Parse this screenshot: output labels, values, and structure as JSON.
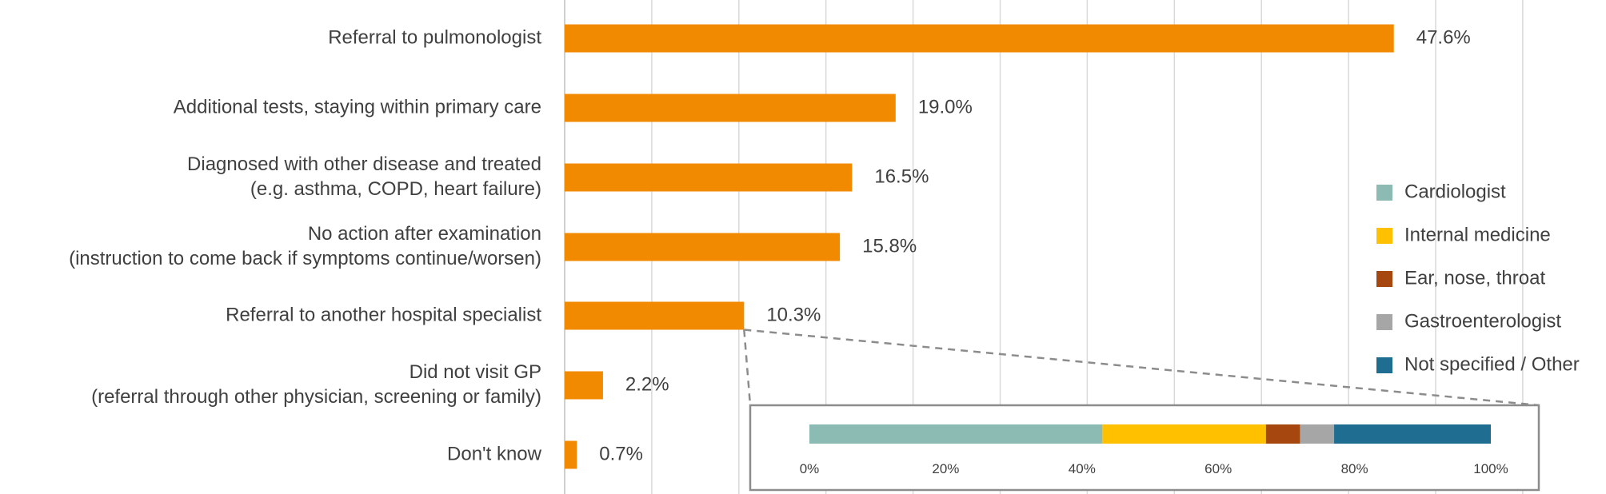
{
  "chart_data": [
    {
      "type": "bar",
      "orientation": "horizontal",
      "categories": [
        [
          "Referral to pulmonologist"
        ],
        [
          "Additional tests, staying within primary care"
        ],
        [
          "Diagnosed with other disease and treated",
          "(e.g. asthma, COPD, heart failure)"
        ],
        [
          "No action after examination",
          "(instruction to come back if symptoms continue/worsen)"
        ],
        [
          "Referral to another hospital specialist"
        ],
        [
          "Did not visit GP",
          "(referral through other physician, screening or family)"
        ],
        [
          "Don't know"
        ]
      ],
      "values": [
        47.6,
        19.0,
        16.5,
        15.8,
        10.3,
        2.2,
        0.7
      ],
      "value_labels": [
        "47.6%",
        "19.0%",
        "16.5%",
        "15.8%",
        "10.3%",
        "2.2%",
        "0.7%"
      ],
      "xlim": [
        0,
        60
      ],
      "grid": true,
      "bar_color": "#F28A00"
    },
    {
      "type": "bar",
      "orientation": "horizontal",
      "stacked": true,
      "normalized": true,
      "series": [
        {
          "name": "Cardiologist",
          "value": 43,
          "color": "#8CBBB4"
        },
        {
          "name": "Internal medicine",
          "value": 24,
          "color": "#FFC000"
        },
        {
          "name": "Ear, nose, throat",
          "value": 5,
          "color": "#A5470E"
        },
        {
          "name": "Gastroenterologist",
          "value": 5,
          "color": "#A6A6A6"
        },
        {
          "name": "Not specified / Other",
          "value": 23,
          "color": "#1F6E92"
        }
      ],
      "xlim": [
        0,
        100
      ],
      "xticks": [
        "0%",
        "20%",
        "40%",
        "60%",
        "80%",
        "100%"
      ],
      "legend_position": "right"
    }
  ]
}
